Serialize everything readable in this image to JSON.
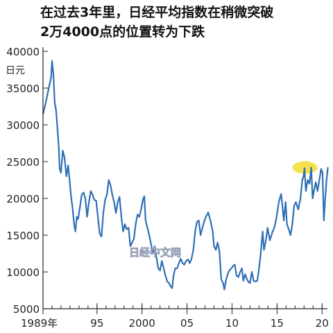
{
  "title_lines": [
    "在过去3年里，日经平均指数在稍微突破",
    "2万4000点的位置转为下跌"
  ],
  "watermark": "日经中文网",
  "colors": {
    "line": "#2f6fb5",
    "highlight": "#f2df3a",
    "axis": "#222222"
  },
  "chart_data": {
    "type": "line",
    "ylabel": "日元",
    "ylim": [
      5000,
      40000
    ],
    "yticks": [
      "5000",
      "10000",
      "15000",
      "20000",
      "25000",
      "30000",
      "35000",
      "40000"
    ],
    "xlim": [
      1989,
      2020.6
    ],
    "xticks": [
      {
        "x": 1989,
        "label": "1989年"
      },
      {
        "x": 1995,
        "label": "95"
      },
      {
        "x": 2000,
        "label": "2000"
      },
      {
        "x": 2005,
        "label": "05"
      },
      {
        "x": 2010,
        "label": "10"
      },
      {
        "x": 2015,
        "label": "15"
      },
      {
        "x": 2020,
        "label": "20"
      }
    ],
    "highlight": {
      "x": 2018.1,
      "y": 24200
    },
    "series": [
      {
        "values": [
          [
            1989.0,
            31500
          ],
          [
            1989.3,
            33000
          ],
          [
            1989.6,
            34800
          ],
          [
            1989.9,
            36500
          ],
          [
            1990.0,
            38700
          ],
          [
            1990.15,
            37000
          ],
          [
            1990.3,
            33000
          ],
          [
            1990.45,
            32000
          ],
          [
            1990.6,
            29500
          ],
          [
            1990.75,
            27000
          ],
          [
            1990.85,
            24000
          ],
          [
            1991.0,
            23500
          ],
          [
            1991.2,
            26500
          ],
          [
            1991.4,
            25500
          ],
          [
            1991.6,
            23000
          ],
          [
            1991.8,
            24500
          ],
          [
            1991.95,
            22500
          ],
          [
            1992.1,
            20500
          ],
          [
            1992.3,
            18500
          ],
          [
            1992.45,
            16500
          ],
          [
            1992.6,
            15500
          ],
          [
            1992.75,
            17500
          ],
          [
            1992.9,
            17200
          ],
          [
            1993.1,
            18800
          ],
          [
            1993.3,
            20500
          ],
          [
            1993.5,
            20800
          ],
          [
            1993.7,
            20000
          ],
          [
            1993.9,
            17500
          ],
          [
            1994.1,
            19500
          ],
          [
            1994.3,
            21000
          ],
          [
            1994.5,
            20500
          ],
          [
            1994.7,
            19800
          ],
          [
            1994.9,
            19700
          ],
          [
            1995.1,
            17500
          ],
          [
            1995.3,
            15200
          ],
          [
            1995.5,
            14800
          ],
          [
            1995.7,
            18000
          ],
          [
            1995.9,
            19800
          ],
          [
            1996.1,
            20500
          ],
          [
            1996.3,
            22500
          ],
          [
            1996.5,
            21800
          ],
          [
            1996.7,
            20500
          ],
          [
            1996.9,
            19500
          ],
          [
            1997.1,
            18000
          ],
          [
            1997.3,
            19500
          ],
          [
            1997.5,
            20200
          ],
          [
            1997.7,
            17500
          ],
          [
            1997.9,
            15500
          ],
          [
            1998.1,
            16500
          ],
          [
            1998.3,
            15800
          ],
          [
            1998.5,
            16000
          ],
          [
            1998.7,
            13500
          ],
          [
            1998.9,
            14000
          ],
          [
            1999.1,
            14500
          ],
          [
            1999.3,
            16500
          ],
          [
            1999.5,
            17800
          ],
          [
            1999.7,
            17500
          ],
          [
            1999.9,
            18500
          ],
          [
            2000.1,
            19800
          ],
          [
            2000.25,
            20300
          ],
          [
            2000.4,
            17000
          ],
          [
            2000.6,
            16000
          ],
          [
            2000.8,
            15000
          ],
          [
            2001.0,
            13800
          ],
          [
            2001.2,
            12500
          ],
          [
            2001.4,
            13500
          ],
          [
            2001.6,
            12000
          ],
          [
            2001.8,
            10500
          ],
          [
            2002.0,
            10200
          ],
          [
            2002.2,
            11500
          ],
          [
            2002.4,
            10500
          ],
          [
            2002.6,
            9500
          ],
          [
            2002.8,
            8700
          ],
          [
            2003.0,
            8500
          ],
          [
            2003.2,
            8000
          ],
          [
            2003.35,
            7800
          ],
          [
            2003.5,
            9500
          ],
          [
            2003.7,
            10500
          ],
          [
            2003.9,
            10500
          ],
          [
            2004.1,
            11200
          ],
          [
            2004.3,
            11800
          ],
          [
            2004.5,
            11200
          ],
          [
            2004.7,
            11000
          ],
          [
            2004.9,
            11500
          ],
          [
            2005.1,
            11700
          ],
          [
            2005.3,
            11200
          ],
          [
            2005.5,
            11800
          ],
          [
            2005.7,
            13000
          ],
          [
            2005.9,
            15500
          ],
          [
            2006.1,
            16800
          ],
          [
            2006.3,
            17000
          ],
          [
            2006.5,
            15000
          ],
          [
            2006.7,
            16000
          ],
          [
            2006.9,
            16800
          ],
          [
            2007.1,
            17500
          ],
          [
            2007.35,
            18100
          ],
          [
            2007.6,
            17000
          ],
          [
            2007.85,
            15500
          ],
          [
            2008.0,
            13500
          ],
          [
            2008.2,
            13000
          ],
          [
            2008.4,
            14000
          ],
          [
            2008.6,
            12800
          ],
          [
            2008.8,
            9000
          ],
          [
            2009.0,
            8500
          ],
          [
            2009.15,
            7600
          ],
          [
            2009.35,
            9000
          ],
          [
            2009.55,
            9800
          ],
          [
            2009.75,
            10300
          ],
          [
            2009.95,
            10500
          ],
          [
            2010.1,
            10800
          ],
          [
            2010.3,
            11000
          ],
          [
            2010.5,
            9500
          ],
          [
            2010.7,
            9300
          ],
          [
            2010.9,
            10000
          ],
          [
            2011.1,
            10500
          ],
          [
            2011.25,
            8800
          ],
          [
            2011.45,
            9700
          ],
          [
            2011.65,
            9000
          ],
          [
            2011.85,
            8600
          ],
          [
            2012.0,
            8500
          ],
          [
            2012.2,
            10000
          ],
          [
            2012.4,
            8800
          ],
          [
            2012.6,
            8700
          ],
          [
            2012.8,
            8800
          ],
          [
            2012.95,
            10000
          ],
          [
            2013.15,
            12000
          ],
          [
            2013.4,
            15500
          ],
          [
            2013.55,
            13000
          ],
          [
            2013.75,
            14200
          ],
          [
            2013.95,
            16000
          ],
          [
            2014.2,
            14300
          ],
          [
            2014.45,
            15300
          ],
          [
            2014.7,
            16000
          ],
          [
            2014.95,
            17500
          ],
          [
            2015.2,
            19500
          ],
          [
            2015.45,
            20600
          ],
          [
            2015.6,
            19000
          ],
          [
            2015.75,
            17000
          ],
          [
            2015.95,
            19500
          ],
          [
            2016.1,
            16500
          ],
          [
            2016.3,
            15800
          ],
          [
            2016.5,
            15000
          ],
          [
            2016.7,
            16500
          ],
          [
            2016.9,
            19000
          ],
          [
            2017.1,
            19500
          ],
          [
            2017.35,
            18500
          ],
          [
            2017.6,
            20000
          ],
          [
            2017.8,
            22500
          ],
          [
            2017.95,
            23000
          ],
          [
            2018.05,
            24100
          ],
          [
            2018.2,
            21000
          ],
          [
            2018.4,
            22500
          ],
          [
            2018.6,
            22000
          ],
          [
            2018.8,
            24200
          ],
          [
            2018.95,
            20000
          ],
          [
            2019.1,
            21000
          ],
          [
            2019.3,
            22200
          ],
          [
            2019.5,
            21000
          ],
          [
            2019.7,
            22500
          ],
          [
            2019.9,
            24000
          ],
          [
            2020.05,
            23500
          ],
          [
            2020.2,
            17000
          ],
          [
            2020.35,
            20000
          ],
          [
            2020.5,
            22500
          ],
          [
            2020.65,
            24200
          ]
        ]
      }
    ]
  }
}
